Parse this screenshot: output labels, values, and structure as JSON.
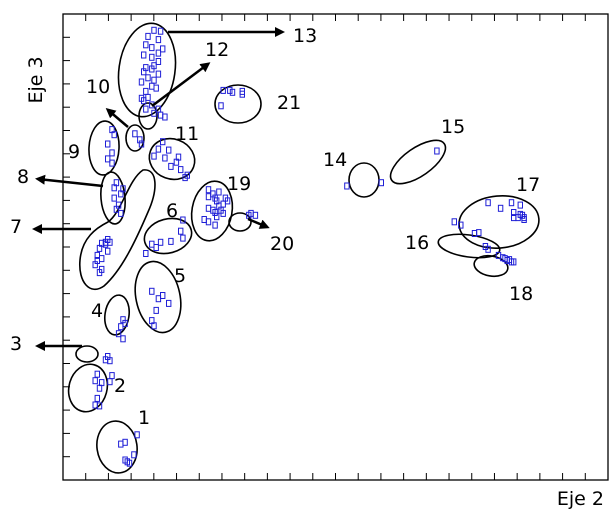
{
  "chart_data": {
    "type": "scatter",
    "title": "",
    "xlabel": "Eje 2",
    "ylabel": "Eje 3",
    "xlim": [
      0,
      100
    ],
    "ylim": [
      0,
      100
    ],
    "grid": false,
    "colors": {
      "points": "#1f1fd6",
      "outline": "#000000"
    },
    "cluster_labels": [
      "1",
      "2",
      "3",
      "4",
      "5",
      "6",
      "7",
      "8",
      "9",
      "10",
      "11",
      "12",
      "13",
      "14",
      "15",
      "16",
      "17",
      "18",
      "19",
      "20",
      "21"
    ],
    "points": [
      [
        13.6,
        9.7
      ],
      [
        11.4,
        8.1
      ],
      [
        10.6,
        7.7
      ],
      [
        13,
        5.4
      ],
      [
        11.8,
        3.9
      ],
      [
        11.4,
        4.3
      ],
      [
        12.2,
        3.6
      ],
      [
        6.3,
        22.7
      ],
      [
        9,
        22.4
      ],
      [
        5.9,
        21.3
      ],
      [
        8.6,
        21.1
      ],
      [
        7.1,
        20.9
      ],
      [
        6.7,
        19.7
      ],
      [
        6.3,
        17.5
      ],
      [
        5.9,
        16.1
      ],
      [
        6.7,
        15.9
      ],
      [
        8.2,
        26.5
      ],
      [
        8.6,
        25.6
      ],
      [
        7.8,
        25.8
      ],
      [
        11,
        34.4
      ],
      [
        11.4,
        33.6
      ],
      [
        10.6,
        32.9
      ],
      [
        10.2,
        31.4
      ],
      [
        11,
        30.3
      ],
      [
        16.3,
        40.5
      ],
      [
        18.3,
        39.6
      ],
      [
        17.5,
        38.9
      ],
      [
        19.4,
        37.9
      ],
      [
        17.1,
        36.4
      ],
      [
        16.3,
        34.2
      ],
      [
        16.7,
        33.1
      ],
      [
        22,
        55.8
      ],
      [
        21.6,
        53.4
      ],
      [
        22,
        51.9
      ],
      [
        19.8,
        51.2
      ],
      [
        17.9,
        51
      ],
      [
        16.3,
        50.6
      ],
      [
        17.1,
        49.9
      ],
      [
        15.2,
        48.6
      ],
      [
        8.2,
        51.6
      ],
      [
        7.8,
        51
      ],
      [
        8.6,
        51
      ],
      [
        7.1,
        50.8
      ],
      [
        7.8,
        50.6
      ],
      [
        6.7,
        49.7
      ],
      [
        8.2,
        49.1
      ],
      [
        6.3,
        48.2
      ],
      [
        7.1,
        47.5
      ],
      [
        6.3,
        47.1
      ],
      [
        5.9,
        46.2
      ],
      [
        7.1,
        45.2
      ],
      [
        6.7,
        44.5
      ],
      [
        9.8,
        63.8
      ],
      [
        9.4,
        62.7
      ],
      [
        11,
        62.5
      ],
      [
        10.6,
        61.4
      ],
      [
        9.4,
        60.5
      ],
      [
        10.2,
        59
      ],
      [
        9.8,
        58.1
      ],
      [
        10.6,
        57.2
      ],
      [
        9,
        75.2
      ],
      [
        9.4,
        74.1
      ],
      [
        8.2,
        72.1
      ],
      [
        9,
        70.2
      ],
      [
        8.2,
        68.9
      ],
      [
        9,
        68
      ],
      [
        13.2,
        74.3
      ],
      [
        14.1,
        73
      ],
      [
        14.4,
        72.1
      ],
      [
        18.3,
        72.6
      ],
      [
        17.5,
        71
      ],
      [
        19.4,
        70.8
      ],
      [
        16.7,
        69.5
      ],
      [
        18.7,
        69.1
      ],
      [
        21.2,
        69.3
      ],
      [
        20.8,
        68.2
      ],
      [
        19.8,
        67.3
      ],
      [
        21.6,
        66.6
      ],
      [
        22.8,
        65.4
      ],
      [
        22.4,
        64.9
      ],
      [
        17.5,
        79.6
      ],
      [
        16.7,
        78.7
      ],
      [
        17.9,
        78.3
      ],
      [
        18.7,
        77.9
      ],
      [
        16.7,
        96.5
      ],
      [
        17.9,
        96.3
      ],
      [
        15.6,
        95.2
      ],
      [
        17.5,
        94.5
      ],
      [
        15.2,
        93.4
      ],
      [
        16.3,
        92.8
      ],
      [
        18.3,
        92.5
      ],
      [
        17.5,
        91.6
      ],
      [
        14.8,
        91.2
      ],
      [
        16.3,
        90.7
      ],
      [
        17.5,
        89.8
      ],
      [
        16.7,
        88.9
      ],
      [
        15.2,
        88.5
      ],
      [
        16.3,
        88.2
      ],
      [
        14.8,
        87.6
      ],
      [
        17.5,
        87.1
      ],
      [
        15.6,
        86.3
      ],
      [
        16.7,
        85.8
      ],
      [
        14.4,
        85.4
      ],
      [
        16.3,
        84.5
      ],
      [
        15.2,
        83.4
      ],
      [
        17.1,
        84.1
      ],
      [
        15.6,
        82.1
      ],
      [
        14.8,
        81.4
      ],
      [
        16.3,
        80.5
      ],
      [
        15.2,
        79.6
      ],
      [
        14.4,
        81.9
      ],
      [
        29.4,
        83.6
      ],
      [
        30.6,
        83.6
      ],
      [
        31.1,
        83.2
      ],
      [
        32.9,
        83.4
      ],
      [
        32.9,
        82.8
      ],
      [
        29,
        80.3
      ],
      [
        52.1,
        63.1
      ],
      [
        58.4,
        63.8
      ],
      [
        68.6,
        70.6
      ],
      [
        71.8,
        55.4
      ],
      [
        73,
        54.7
      ],
      [
        75.5,
        52.9
      ],
      [
        76.3,
        53.1
      ],
      [
        78,
        59.5
      ],
      [
        80.3,
        58.3
      ],
      [
        82.3,
        59.5
      ],
      [
        83.9,
        59
      ],
      [
        82.7,
        57.4
      ],
      [
        83.9,
        57
      ],
      [
        84.3,
        56.8
      ],
      [
        83.5,
        56.3
      ],
      [
        84.6,
        56.3
      ],
      [
        82.7,
        56.3
      ],
      [
        84.6,
        55.9
      ],
      [
        77.5,
        50.1
      ],
      [
        78,
        49.5
      ],
      [
        79.9,
        48.2
      ],
      [
        80.7,
        47.7
      ],
      [
        81.1,
        47.5
      ],
      [
        81.5,
        47.1
      ],
      [
        82.3,
        46.8
      ],
      [
        82.7,
        46.8
      ],
      [
        81.9,
        47.3
      ],
      [
        26.7,
        62.3
      ],
      [
        27.5,
        61.4
      ],
      [
        28.6,
        61.8
      ],
      [
        26.7,
        60.8
      ],
      [
        27.9,
        60.5
      ],
      [
        29.8,
        60.5
      ],
      [
        28.2,
        59.9
      ],
      [
        29.4,
        59.2
      ],
      [
        30.2,
        59.9
      ],
      [
        28.6,
        58.8
      ],
      [
        26.7,
        58.3
      ],
      [
        27.5,
        57.9
      ],
      [
        29,
        57.9
      ],
      [
        27.9,
        57.4
      ],
      [
        28.2,
        56.5
      ],
      [
        29.4,
        57.2
      ],
      [
        26.7,
        55.4
      ],
      [
        27.9,
        54.7
      ],
      [
        25.9,
        55.9
      ],
      [
        34.1,
        56.8
      ],
      [
        34.5,
        57.2
      ],
      [
        35.3,
        56.8
      ]
    ],
    "clusters": [
      {
        "id": "1",
        "label_pos": [
          32.5,
          12.0
        ]
      },
      {
        "id": "2",
        "label_pos": [
          24.3,
          30.0
        ]
      },
      {
        "id": "3",
        "label_pos": [
          8.5,
          36.0
        ]
      },
      {
        "id": "4",
        "label_pos": [
          20.0,
          48.5
        ]
      },
      {
        "id": "5",
        "label_pos": [
          38.0,
          63.0
        ]
      },
      {
        "id": "6",
        "label_pos": [
          42.0,
          66.0
        ]
      },
      {
        "id": "7",
        "label_pos": [
          10.0,
          65.0
        ]
      },
      {
        "id": "8",
        "label_pos": [
          10.0,
          70.5
        ]
      },
      {
        "id": "9",
        "label_pos": [
          22.0,
          79.0
        ]
      },
      {
        "id": "10",
        "label_pos": [
          25.0,
          88.0
        ]
      },
      {
        "id": "11",
        "label_pos": [
          36.0,
          77.5
        ]
      },
      {
        "id": "12",
        "label_pos": [
          41.0,
          96.0
        ]
      },
      {
        "id": "13",
        "label_pos": [
          51.0,
          99.0
        ]
      },
      {
        "id": "14",
        "label_pos": [
          61.0,
          70.0
        ]
      },
      {
        "id": "15",
        "label_pos": [
          71.0,
          75.0
        ]
      },
      {
        "id": "16",
        "label_pos": [
          70.0,
          50.0
        ]
      },
      {
        "id": "17",
        "label_pos": [
          86.0,
          66.0
        ]
      },
      {
        "id": "18",
        "label_pos": [
          88.0,
          44.0
        ]
      },
      {
        "id": "19",
        "label_pos": [
          39.0,
          63.0
        ]
      },
      {
        "id": "20",
        "label_pos": [
          46.0,
          53.0
        ]
      },
      {
        "id": "21",
        "label_pos": [
          46.0,
          84.0
        ]
      }
    ]
  }
}
